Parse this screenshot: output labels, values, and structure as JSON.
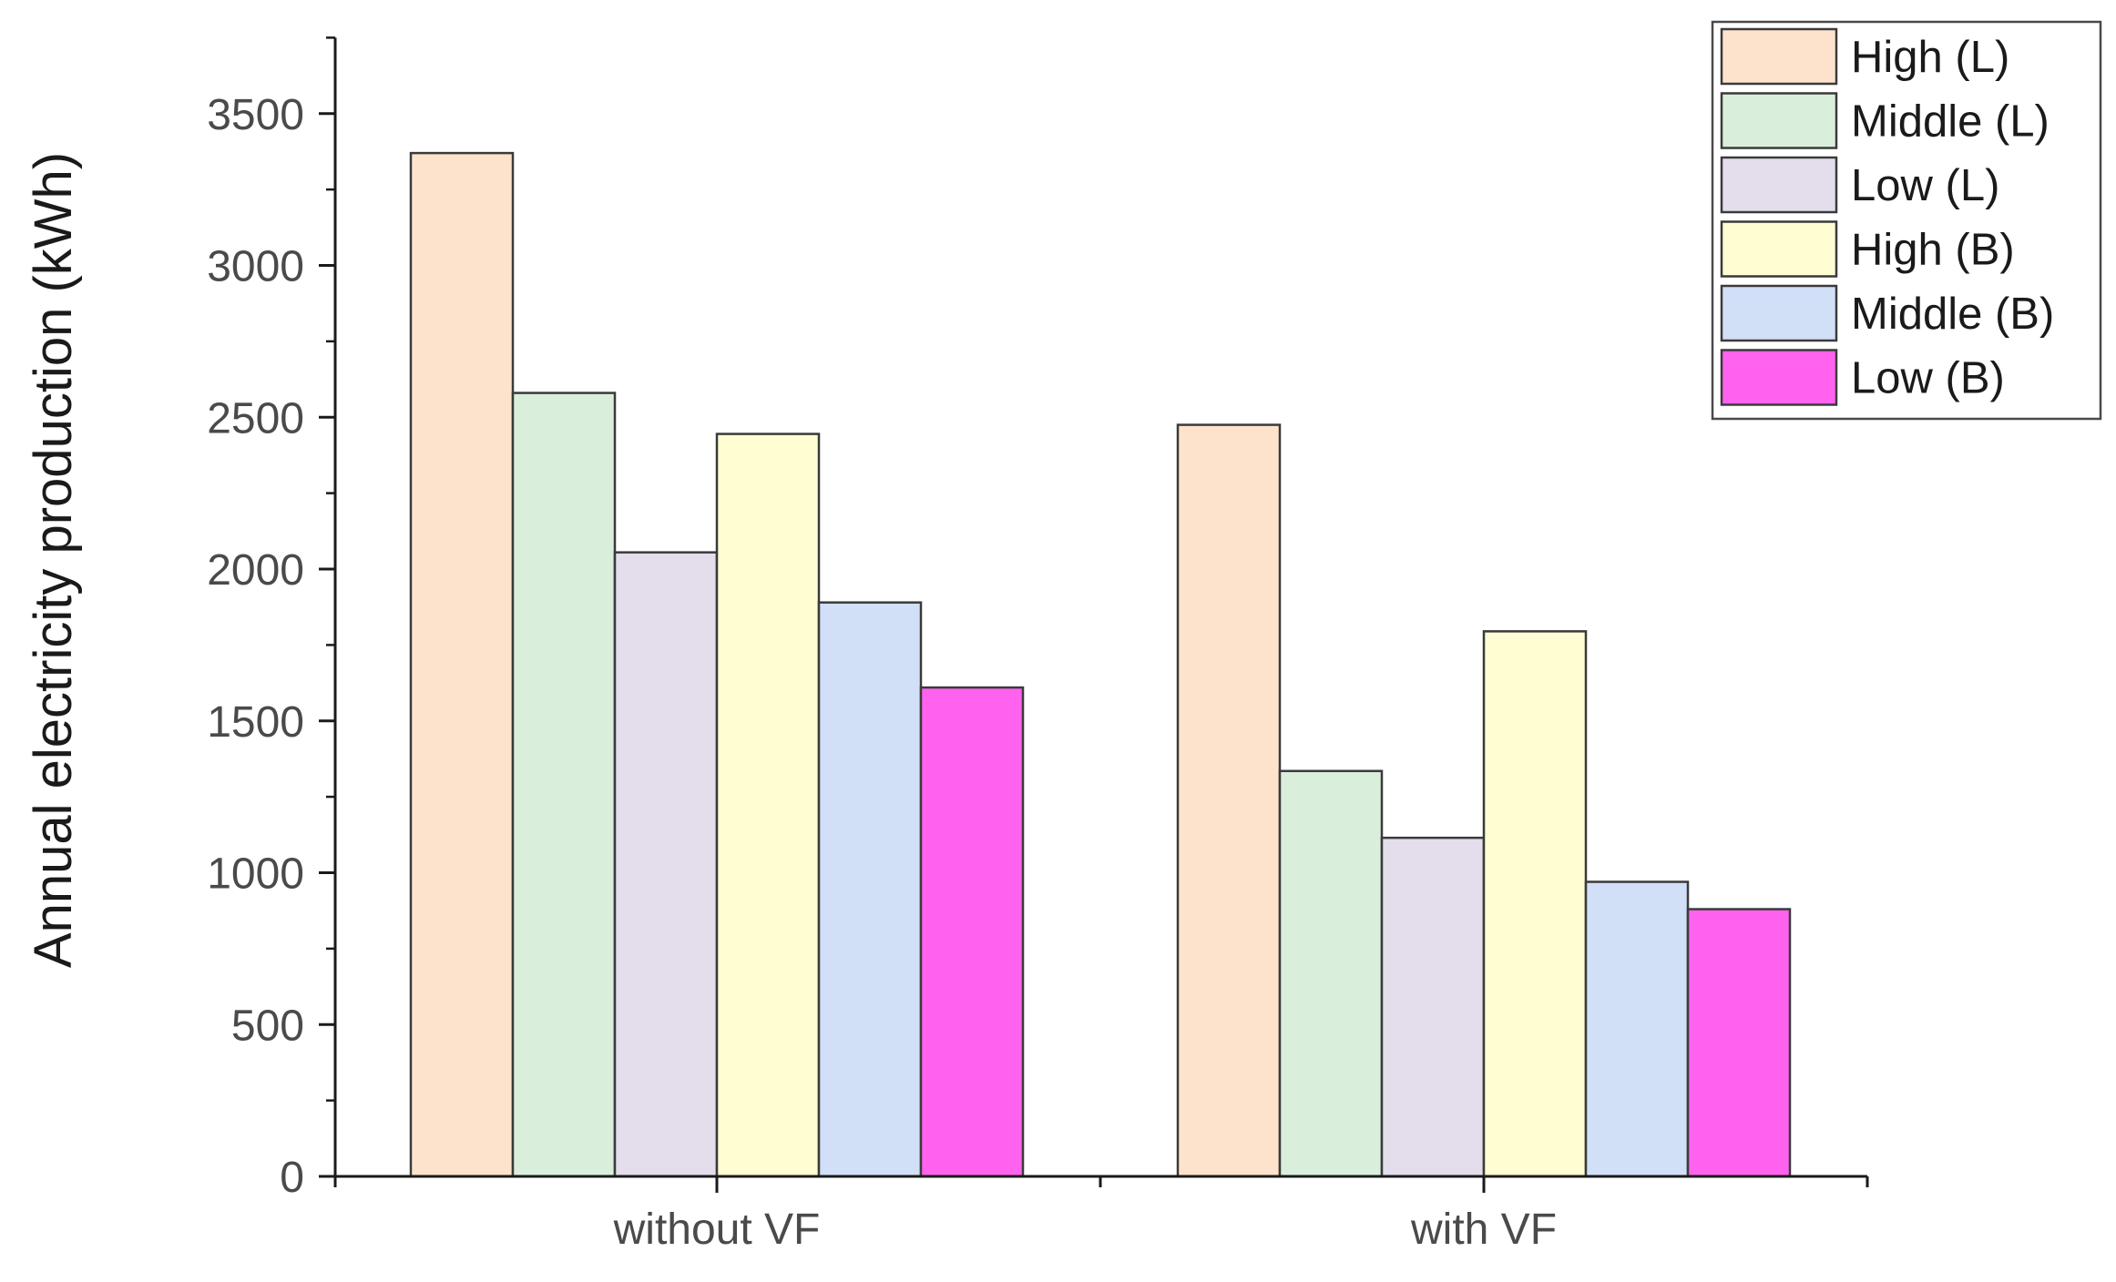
{
  "chart_data": {
    "type": "bar",
    "title": "",
    "xlabel": "",
    "ylabel": "Annual electricity production (kWh)",
    "categories": [
      "without VF",
      "with VF"
    ],
    "ylim": [
      0,
      3750
    ],
    "yticks": [
      0,
      500,
      1000,
      1500,
      2000,
      2500,
      3000,
      3500
    ],
    "grid": false,
    "legend_position": "top-right",
    "series": [
      {
        "name": "High (L)",
        "color": "#FDE3CC",
        "values": [
          3370,
          2475
        ]
      },
      {
        "name": "Middle (L)",
        "color": "#D9EFDC",
        "values": [
          2580,
          1335
        ]
      },
      {
        "name": "Low (L)",
        "color": "#E3DDEC",
        "values": [
          2055,
          1115
        ]
      },
      {
        "name": "High (B)",
        "color": "#FFFDD2",
        "values": [
          2445,
          1795
        ]
      },
      {
        "name": "Middle (B)",
        "color": "#D1DFF7",
        "values": [
          1890,
          970
        ]
      },
      {
        "name": "Low (B)",
        "color": "#FF62EE",
        "values": [
          1610,
          880
        ]
      }
    ]
  }
}
